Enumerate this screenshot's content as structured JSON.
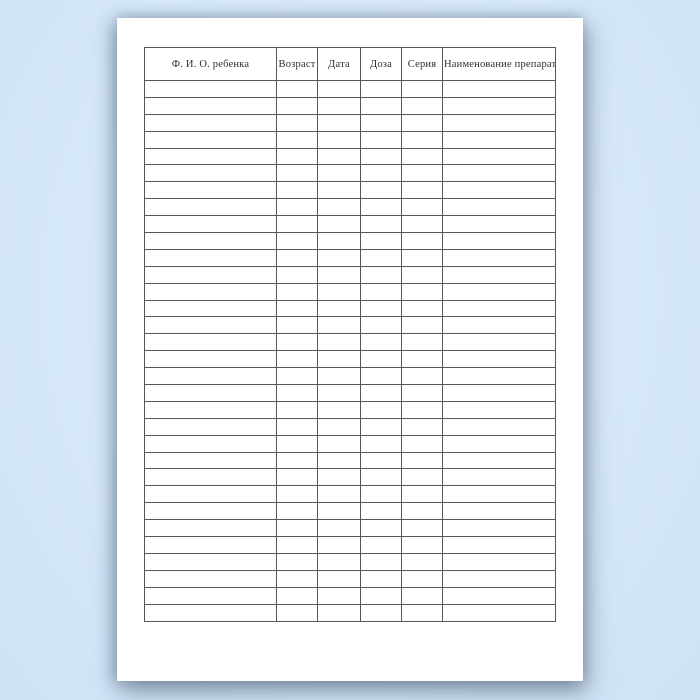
{
  "page": {
    "background_color": "#d6e8fa",
    "paper_color": "#ffffff"
  },
  "table": {
    "headers": [
      "Ф. И. О. ребенка",
      "Возраст",
      "Дата",
      "Доза",
      "Серия",
      "Наименование препарата"
    ],
    "row_count": 32,
    "border_color": "#565656",
    "text_color": "#2e2e2e",
    "cell_values": []
  }
}
